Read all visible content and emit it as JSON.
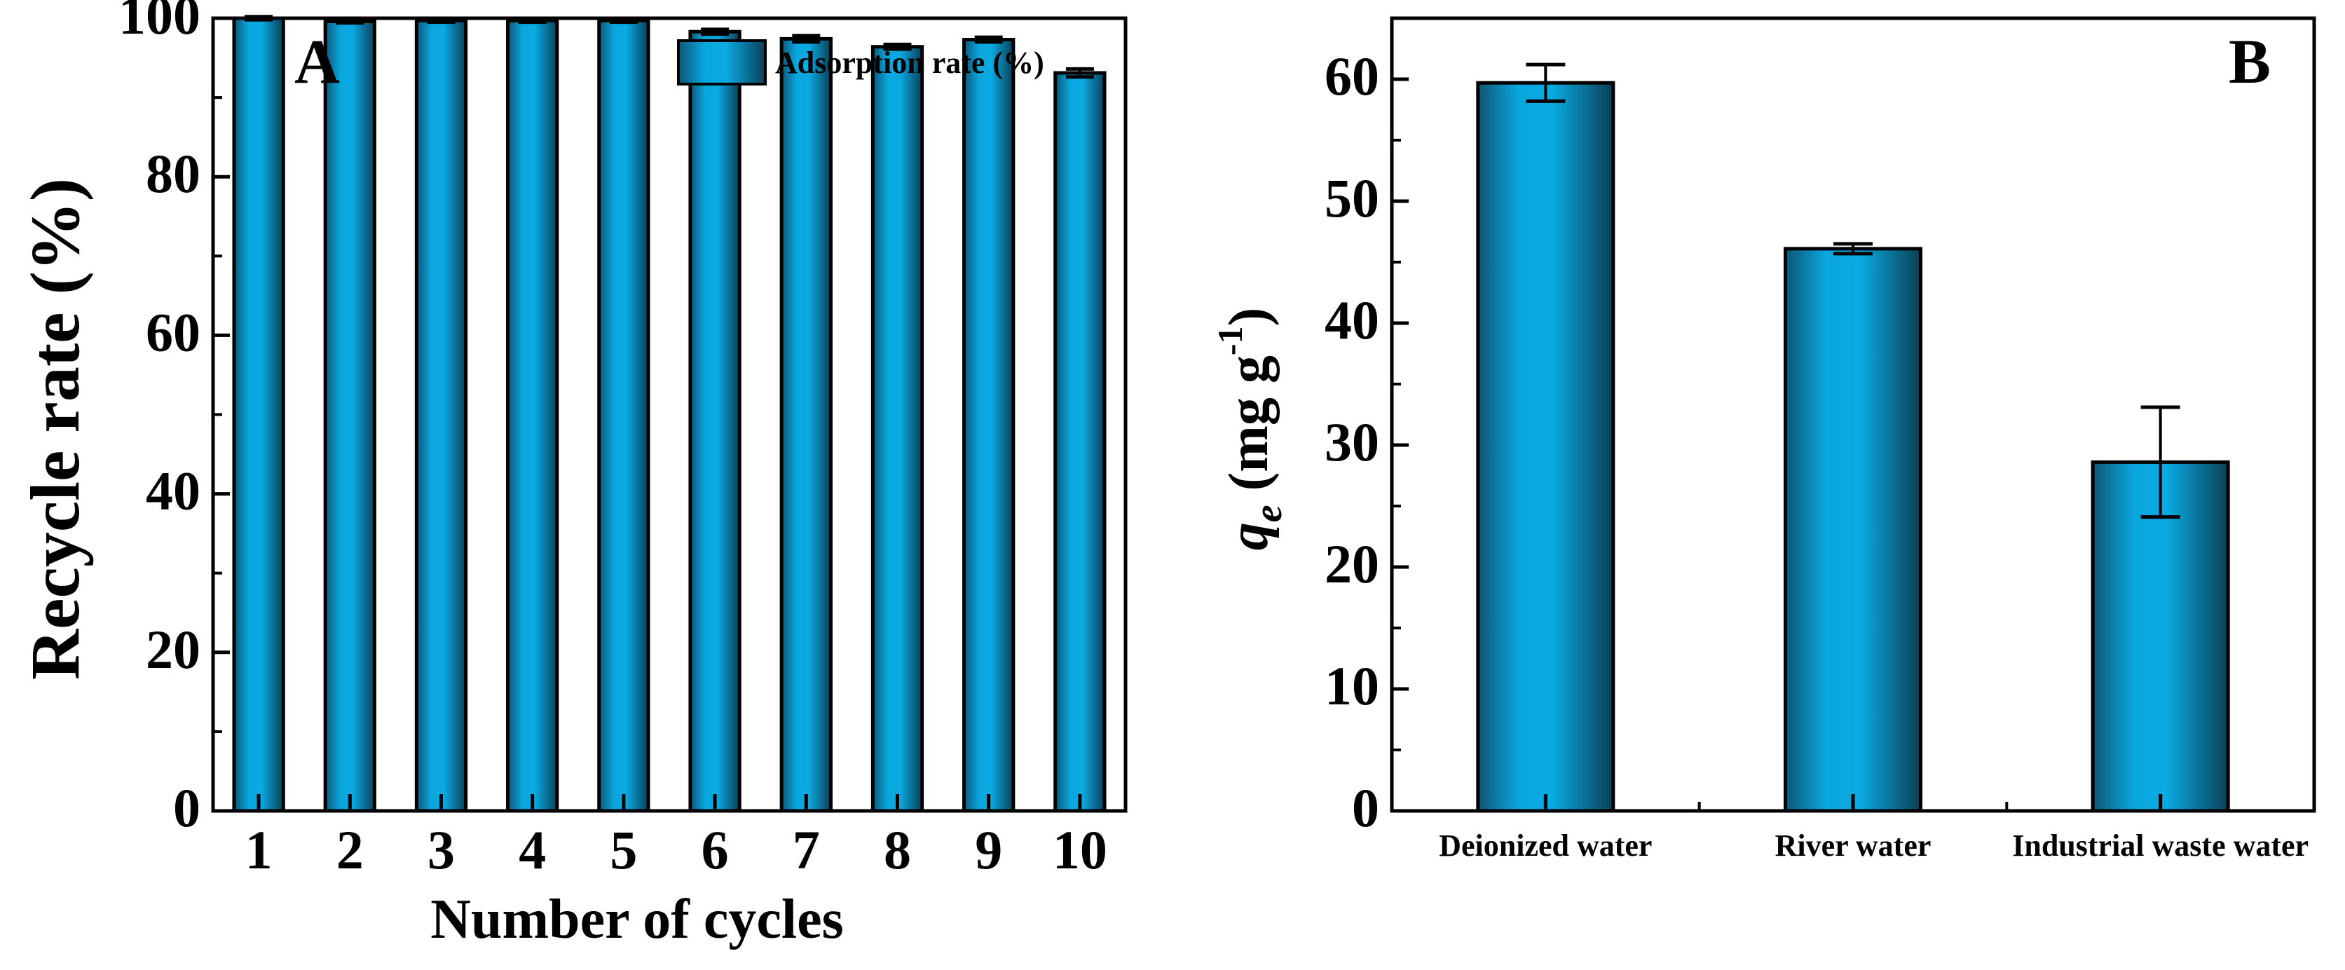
{
  "chart_data": [
    {
      "type": "bar",
      "panel_label": "A",
      "categories": [
        "1",
        "2",
        "3",
        "4",
        "5",
        "6",
        "7",
        "8",
        "9",
        "10"
      ],
      "series": [
        {
          "name": "Adsorption rate (%)",
          "values": [
            100.0,
            99.6,
            99.7,
            99.7,
            99.7,
            98.3,
            97.4,
            96.4,
            97.3,
            93.1
          ],
          "errors": [
            0.2,
            0.2,
            0.2,
            0.2,
            0.2,
            0.3,
            0.4,
            0.3,
            0.3,
            0.5
          ]
        }
      ],
      "xlabel": "Number of cycles",
      "ylabel": "Recycle rate (%)",
      "ylim": [
        0,
        100
      ],
      "yticks": [
        "0",
        "20",
        "40",
        "60",
        "80",
        "100"
      ],
      "legend": "top-right",
      "grid": false
    },
    {
      "type": "bar",
      "panel_label": "B",
      "categories": [
        "Deionized water",
        "River water",
        "Industrial waste water"
      ],
      "series": [
        {
          "name": "qe",
          "values": [
            59.7,
            46.1,
            28.6
          ],
          "errors": [
            1.5,
            0.4,
            4.5
          ]
        }
      ],
      "xlabel": "",
      "ylabel": {
        "symbol": "q",
        "subscript": "e",
        "units": " (mg g",
        "superscript": "-1",
        "close": ")"
      },
      "ylim": [
        0,
        65
      ],
      "yticks": [
        "0",
        "10",
        "20",
        "30",
        "40",
        "50",
        "60"
      ],
      "grid": false
    }
  ],
  "colors": {
    "bar_center": "#0aa6de",
    "bar_edge": "#0d4a66",
    "axis": "#000000"
  }
}
